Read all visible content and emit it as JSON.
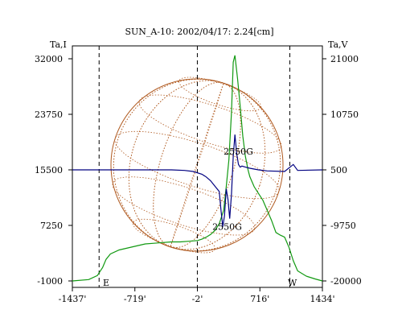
{
  "chart_data": {
    "type": "line",
    "title": "SUN_A-10: 2002/04/17: 2.24[cm]",
    "ylabel_left": "Ta,I",
    "ylabel_right": "Ta,V",
    "x_ticks": [
      "-1437'",
      "-719'",
      "-2'",
      "716'",
      "1434'"
    ],
    "y_left_ticks": [
      "32000",
      "23750",
      "15500",
      "7250",
      "-1000"
    ],
    "y_right_ticks": [
      "21000",
      "10750",
      "500",
      "-9750",
      "-20000"
    ],
    "xlim": [
      -1437,
      1434
    ],
    "ylim_left": [
      -1000,
      32000
    ],
    "ylim_right": [
      -20000,
      21000
    ],
    "dashed_x": [
      -1130,
      -2,
      1060
    ],
    "markers": {
      "east": "E",
      "west": "W"
    },
    "annotations": [
      {
        "text": "2550G",
        "x": 470,
        "y": 17800
      },
      {
        "text": "2550G",
        "x": 340,
        "y": 6600
      }
    ],
    "series": [
      {
        "axis": "left",
        "color": "#119911",
        "x": [
          -1437,
          -1250,
          -1150,
          -1090,
          -1050,
          -1000,
          -900,
          -800,
          -700,
          -600,
          -500,
          -400,
          -300,
          -200,
          -100,
          0,
          50,
          100,
          150,
          200,
          250,
          300,
          330,
          360,
          390,
          410,
          430,
          460,
          490,
          520,
          550,
          580,
          600,
          650,
          700,
          750,
          800,
          850,
          900,
          950,
          1000,
          1050,
          1100,
          1150,
          1250,
          1350,
          1434
        ],
        "y": [
          -1000,
          -800,
          -200,
          1000,
          2200,
          3000,
          3600,
          3900,
          4200,
          4500,
          4600,
          4700,
          4800,
          4800,
          4900,
          5000,
          5200,
          5500,
          5900,
          6500,
          7500,
          9500,
          13000,
          17000,
          24000,
          31500,
          32500,
          29000,
          25000,
          20500,
          17500,
          15500,
          14500,
          13000,
          12000,
          11000,
          9500,
          8000,
          6200,
          5800,
          5500,
          4000,
          2000,
          500,
          -300,
          -700,
          -1000
        ]
      },
      {
        "axis": "right",
        "color": "#000080",
        "x": [
          -1437,
          -1000,
          -600,
          -300,
          -150,
          -50,
          50,
          100,
          150,
          200,
          250,
          270,
          290,
          310,
          330,
          350,
          370,
          390,
          410,
          430,
          450,
          470,
          490,
          510,
          550,
          600,
          700,
          800,
          1000,
          1100,
          1150,
          1434
        ],
        "y": [
          500,
          500,
          500,
          500,
          400,
          200,
          -300,
          -800,
          -1500,
          -2500,
          -3500,
          -7000,
          -10000,
          -8000,
          -3000,
          -5000,
          -8500,
          -4000,
          3000,
          7000,
          3500,
          1500,
          1000,
          1200,
          1000,
          800,
          500,
          300,
          200,
          1500,
          400,
          500
        ]
      }
    ]
  },
  "colors": {
    "disk": "#b05a20",
    "frame": "#000000"
  }
}
